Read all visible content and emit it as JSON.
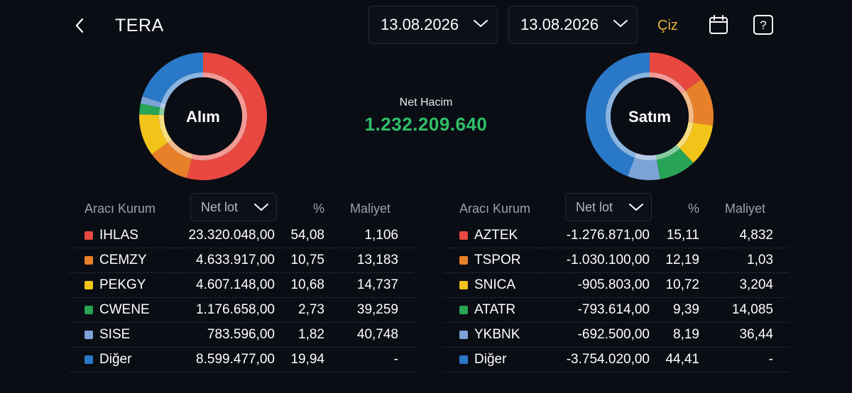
{
  "header": {
    "title": "TERA",
    "date_start": "13.08.2026",
    "date_end": "13.08.2026",
    "draw_label": "Çiz"
  },
  "summary": {
    "net_volume_label": "Net Hacim",
    "net_volume_value": "1.232.209.640"
  },
  "colors": {
    "red": "#e8483f",
    "orange": "#e8802a",
    "yellow": "#f2c319",
    "green": "#27a455",
    "lightblue": "#7ba3d6",
    "blue": "#2a78c8",
    "accent_gold": "#e7b43a",
    "positive": "#2fbf68"
  },
  "buy": {
    "label": "Alım",
    "columns": {
      "broker": "Aracı Kurum",
      "sort": "Net lot",
      "pct": "%",
      "cost": "Maliyet"
    },
    "rows": [
      {
        "name": "IHLAS",
        "lot": "23.320.048,00",
        "pct": "54,08",
        "cost": "1,106",
        "color": "red"
      },
      {
        "name": "CEMZY",
        "lot": "4.633.917,00",
        "pct": "10,75",
        "cost": "13,183",
        "color": "orange"
      },
      {
        "name": "PEKGY",
        "lot": "4.607.148,00",
        "pct": "10,68",
        "cost": "14,737",
        "color": "yellow"
      },
      {
        "name": "CWENE",
        "lot": "1.176.658,00",
        "pct": "2,73",
        "cost": "39,259",
        "color": "green"
      },
      {
        "name": "SISE",
        "lot": "783.596,00",
        "pct": "1,82",
        "cost": "40,748",
        "color": "lightblue"
      },
      {
        "name": "Diğer",
        "lot": "8.599.477,00",
        "pct": "19,94",
        "cost": "-",
        "color": "blue"
      }
    ]
  },
  "sell": {
    "label": "Satım",
    "columns": {
      "broker": "Aracı Kurum",
      "sort": "Net lot",
      "pct": "%",
      "cost": "Maliyet"
    },
    "rows": [
      {
        "name": "AZTEK",
        "lot": "-1.276.871,00",
        "pct": "15,11",
        "cost": "4,832",
        "color": "red"
      },
      {
        "name": "TSPOR",
        "lot": "-1.030.100,00",
        "pct": "12,19",
        "cost": "1,03",
        "color": "orange"
      },
      {
        "name": "SNICA",
        "lot": "-905.803,00",
        "pct": "10,72",
        "cost": "3,204",
        "color": "yellow"
      },
      {
        "name": "ATATR",
        "lot": "-793.614,00",
        "pct": "9,39",
        "cost": "14,085",
        "color": "green"
      },
      {
        "name": "YKBNK",
        "lot": "-692.500,00",
        "pct": "8,19",
        "cost": "36,44",
        "color": "lightblue"
      },
      {
        "name": "Diğer",
        "lot": "-3.754.020,00",
        "pct": "44,41",
        "cost": "-",
        "color": "blue"
      }
    ]
  }
}
